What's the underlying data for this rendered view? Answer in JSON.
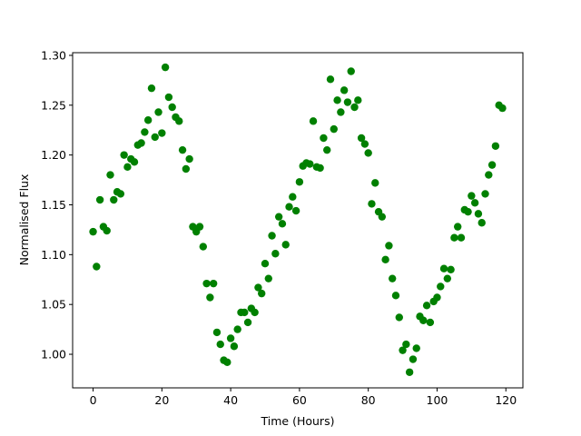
{
  "chart_data": {
    "type": "scatter",
    "x_label": "Time (Hours)",
    "y_label": "Normalised Flux",
    "color": "#008000",
    "xlim": [
      -5.95,
      124.95
    ],
    "ylim": [
      0.9663,
      1.3027
    ],
    "xticks": [
      0,
      20,
      40,
      60,
      80,
      100,
      120
    ],
    "yticks": [
      {
        "value": 1.0,
        "label": "1.00"
      },
      {
        "value": 1.05,
        "label": "1.05"
      },
      {
        "value": 1.1,
        "label": "1.10"
      },
      {
        "value": 1.15,
        "label": "1.15"
      },
      {
        "value": 1.2,
        "label": "1.20"
      },
      {
        "value": 1.25,
        "label": "1.25"
      },
      {
        "value": 1.3,
        "label": "1.30"
      }
    ],
    "x": [
      0,
      1,
      2,
      3,
      4,
      5,
      6,
      7,
      8,
      9,
      10,
      11,
      12,
      13,
      14,
      15,
      16,
      17,
      18,
      19,
      20,
      21,
      22,
      23,
      24,
      25,
      26,
      27,
      28,
      29,
      30,
      31,
      32,
      33,
      34,
      35,
      36,
      37,
      38,
      39,
      40,
      41,
      42,
      43,
      44,
      45,
      46,
      47,
      48,
      49,
      50,
      51,
      52,
      53,
      54,
      55,
      56,
      57,
      58,
      59,
      60,
      61,
      62,
      63,
      64,
      65,
      66,
      67,
      68,
      69,
      70,
      71,
      72,
      73,
      74,
      75,
      76,
      77,
      78,
      79,
      80,
      81,
      82,
      83,
      84,
      85,
      86,
      87,
      88,
      89,
      90,
      91,
      92,
      93,
      94,
      95,
      96,
      97,
      98,
      99,
      100,
      101,
      102,
      103,
      104,
      105,
      106,
      107,
      108,
      109,
      110,
      111,
      112,
      113,
      114,
      115,
      116,
      117,
      118,
      119
    ],
    "y": [
      1.123,
      1.088,
      1.155,
      1.128,
      1.124,
      1.18,
      1.155,
      1.163,
      1.161,
      1.2,
      1.188,
      1.196,
      1.193,
      1.21,
      1.212,
      1.223,
      1.235,
      1.267,
      1.218,
      1.243,
      1.222,
      1.288,
      1.258,
      1.248,
      1.238,
      1.234,
      1.205,
      1.186,
      1.196,
      1.128,
      1.123,
      1.128,
      1.108,
      1.071,
      1.057,
      1.071,
      1.022,
      1.01,
      0.994,
      0.992,
      1.016,
      1.008,
      1.025,
      1.042,
      1.042,
      1.032,
      1.046,
      1.042,
      1.067,
      1.061,
      1.091,
      1.076,
      1.119,
      1.101,
      1.138,
      1.131,
      1.11,
      1.148,
      1.158,
      1.144,
      1.173,
      1.189,
      1.192,
      1.191,
      1.234,
      1.188,
      1.187,
      1.217,
      1.205,
      1.276,
      1.226,
      1.255,
      1.243,
      1.265,
      1.253,
      1.284,
      1.248,
      1.255,
      1.217,
      1.211,
      1.202,
      1.151,
      1.172,
      1.143,
      1.138,
      1.095,
      1.109,
      1.076,
      1.059,
      1.037,
      1.004,
      1.01,
      0.982,
      0.995,
      1.006,
      1.038,
      1.034,
      1.049,
      1.032,
      1.053,
      1.057,
      1.068,
      1.086,
      1.076,
      1.085,
      1.117,
      1.128,
      1.117,
      1.145,
      1.143,
      1.159,
      1.152,
      1.141,
      1.132,
      1.161,
      1.18,
      1.19,
      1.209,
      1.25,
      1.247
    ]
  }
}
